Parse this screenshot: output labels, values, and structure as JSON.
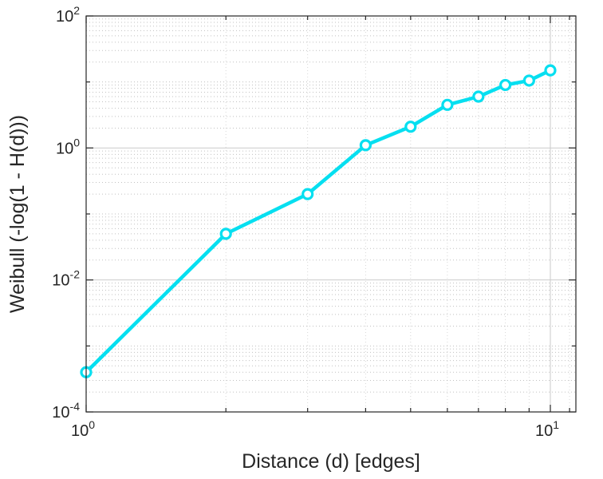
{
  "chart_data": {
    "type": "line",
    "title": "",
    "xlabel": "Distance (d) [edges]",
    "ylabel": "Weibull (-log(1 - H(d)))",
    "x_scale": "log",
    "y_scale": "log",
    "xlim": [
      1,
      11.35
    ],
    "ylim": [
      0.0001,
      100
    ],
    "grid": true,
    "minor_grid": true,
    "legend": "none",
    "axis_color": "#262626",
    "text_color": "#262626",
    "grid_color": "#cbcbcb",
    "minor_grid_color": "#8f8f8f",
    "x_ticks": [
      {
        "value": 1,
        "mantissa": "10",
        "exponent": "0"
      },
      {
        "value": 10,
        "mantissa": "10",
        "exponent": "1"
      }
    ],
    "y_ticks": [
      {
        "value": 0.0001,
        "mantissa": "10",
        "exponent": "-4"
      },
      {
        "value": 0.01,
        "mantissa": "10",
        "exponent": "-2"
      },
      {
        "value": 1,
        "mantissa": "10",
        "exponent": "0"
      },
      {
        "value": 100,
        "mantissa": "10",
        "exponent": "2"
      }
    ],
    "series": [
      {
        "color": "#06dff0",
        "marker": "circle",
        "marker_fill": "#ffffff",
        "x": [
          1,
          2,
          3,
          4,
          5,
          6,
          7,
          8,
          9,
          10
        ],
        "y": [
          0.0004,
          0.05,
          0.2,
          1.1,
          2.1,
          4.5,
          6.0,
          9.0,
          10.5,
          15
        ]
      }
    ]
  }
}
